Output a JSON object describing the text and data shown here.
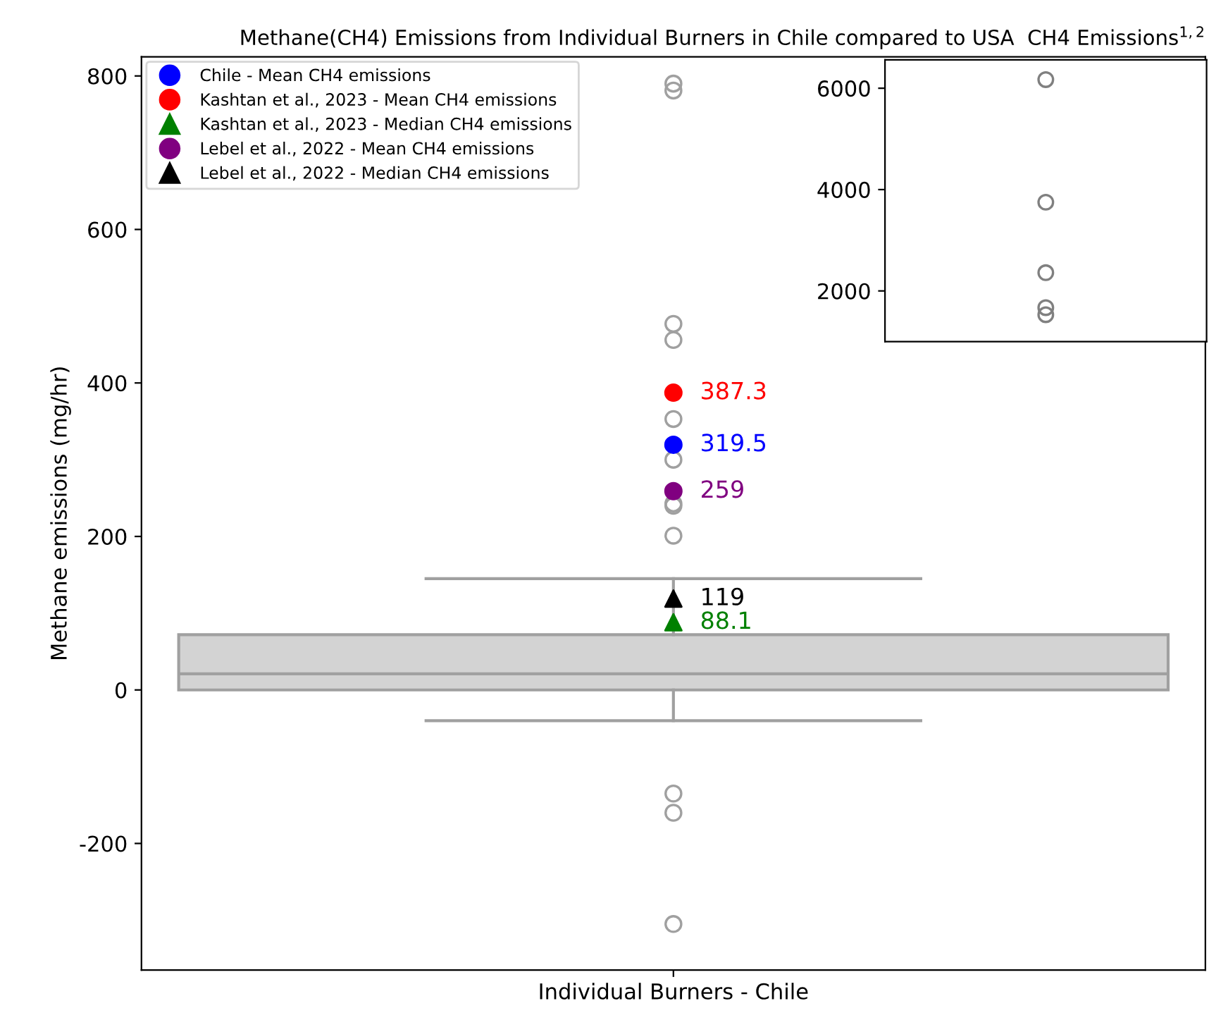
{
  "chart_data": [
    {
      "type": "box",
      "title": "Methane(CH4) Emissions from Individual Burners in Chile compared to USA  CH4 Emissions$^{1,2}$",
      "ylabel": "Methane emissions (mg/hr)",
      "categories": [
        "Individual Burners - Chile"
      ],
      "color": "#d3d3d3",
      "boxes": [
        {
          "low": -40,
          "q1": 0,
          "median": 21,
          "q3": 72,
          "high": 145,
          "outliers": [
            790,
            781,
            477,
            456,
            353,
            300,
            243,
            240,
            201,
            -135,
            -160,
            -305
          ]
        }
      ],
      "series": [
        {
          "type": "scatter",
          "name": "Chile - Mean CH4 emissions",
          "color": "#0000ff",
          "marker": "circle",
          "values": [
            319.5
          ],
          "value_labels": [
            "319.5"
          ]
        },
        {
          "type": "scatter",
          "name": "Kashtan et al., 2023 - Mean CH4 emissions",
          "color": "#ff0000",
          "marker": "circle",
          "values": [
            387.3
          ],
          "value_labels": [
            "387.3"
          ]
        },
        {
          "type": "scatter",
          "name": "Kashtan et al., 2023 - Median CH4 emissions",
          "color": "#008000",
          "marker": "triangle",
          "values": [
            88.1
          ],
          "value_labels": [
            "88.1"
          ]
        },
        {
          "type": "scatter",
          "name": "Lebel et al., 2022 - Mean CH4 emissions",
          "color": "#800080",
          "marker": "circle",
          "values": [
            259
          ],
          "value_labels": [
            "259"
          ]
        },
        {
          "type": "scatter",
          "name": "Lebel et al., 2022 - Median CH4 emissions",
          "color": "#000000",
          "marker": "triangle",
          "values": [
            119
          ],
          "value_labels": [
            "119"
          ]
        }
      ],
      "ylim": [
        -365,
        825
      ],
      "yticks": [
        -200,
        0,
        200,
        400,
        600,
        800
      ],
      "grid": false,
      "legend": "top left"
    },
    {
      "type": "scatter",
      "categories": [
        null
      ],
      "tick_labels": "y",
      "marker": "circle",
      "series": [
        {
          "color": "#808080",
          "values": [
            6170
          ]
        },
        {
          "color": "#808080",
          "values": [
            3750
          ]
        },
        {
          "color": "#808080",
          "values": [
            2360
          ]
        },
        {
          "color": "#808080",
          "values": [
            1670
          ]
        },
        {
          "color": "#808080",
          "values": [
            1530
          ]
        }
      ],
      "ylim": [
        1000,
        6560
      ],
      "yticks": [
        2000,
        4000,
        6000
      ],
      "grid": false
    }
  ]
}
